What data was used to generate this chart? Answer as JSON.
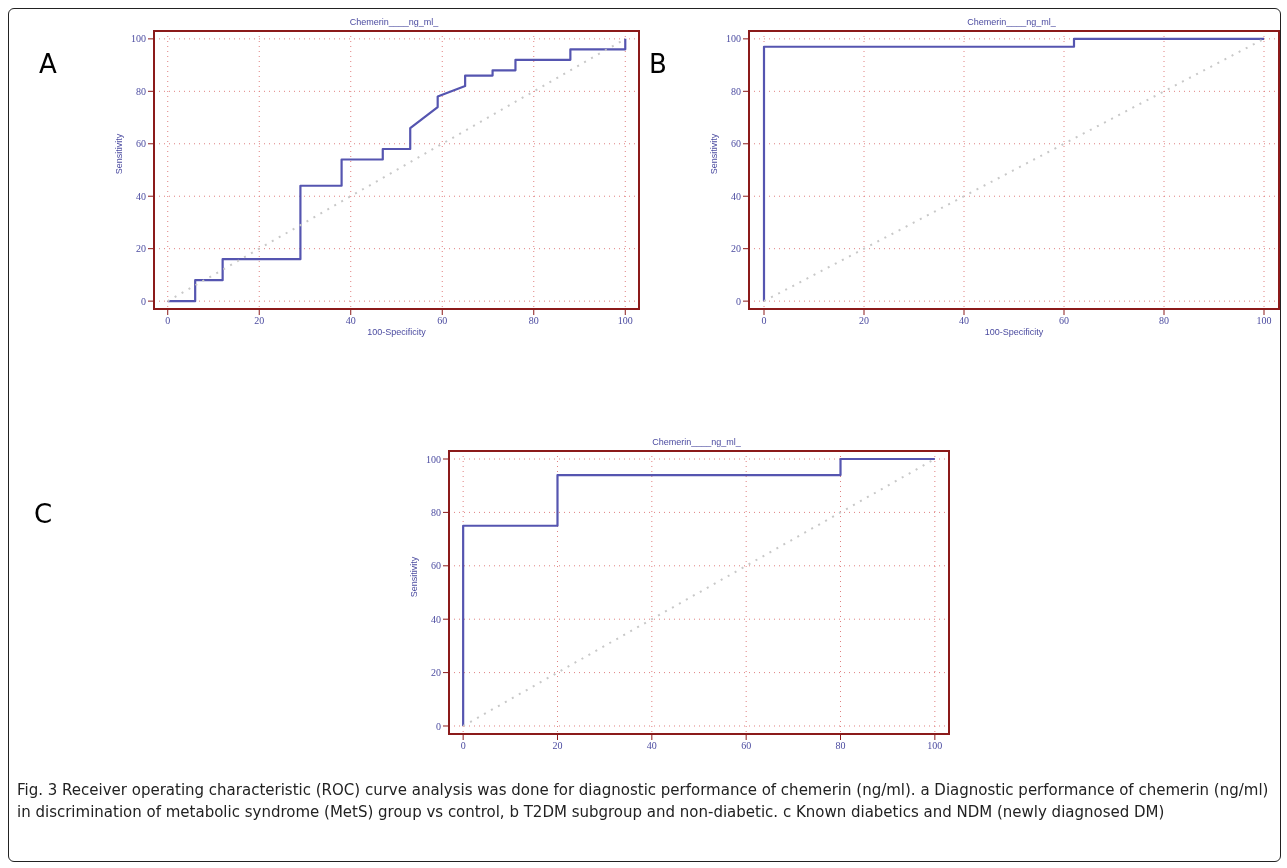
{
  "chart_data": [
    {
      "type": "line",
      "title": "Chemerin____ng_ml_",
      "xlabel": "100-Specificity",
      "ylabel": "Sensitivity",
      "annotations": [
        "A"
      ],
      "xlim": [
        -3,
        103
      ],
      "ylim": [
        -3,
        103
      ],
      "xticks": [
        0,
        20,
        40,
        60,
        80,
        100
      ],
      "yticks": [
        0,
        20,
        40,
        60,
        80,
        100
      ],
      "grid": true,
      "line_style": "solid",
      "series": [
        {
          "color": "#5555b0",
          "x": [
            0,
            6,
            6,
            12,
            12,
            29,
            29,
            38,
            38,
            47,
            47,
            53,
            53,
            59,
            59,
            65,
            65,
            71,
            71,
            76,
            76,
            88,
            88,
            100,
            100
          ],
          "values": [
            0,
            0,
            8,
            8,
            16,
            16,
            44,
            44,
            54,
            54,
            58,
            58,
            66,
            74,
            78,
            82,
            86,
            86,
            88,
            88,
            92,
            92,
            96,
            96,
            100
          ]
        },
        {
          "color": "#c8c8c8",
          "line_style": "dotted",
          "x": [
            0,
            100
          ],
          "values": [
            0,
            100
          ]
        }
      ]
    },
    {
      "type": "line",
      "title": "Chemerin____ng_ml_",
      "xlabel": "100-Specificity",
      "ylabel": "Sensitivity",
      "annotations": [
        "B"
      ],
      "xlim": [
        -3,
        103
      ],
      "ylim": [
        -3,
        103
      ],
      "xticks": [
        0,
        20,
        40,
        60,
        80,
        100
      ],
      "yticks": [
        0,
        20,
        40,
        60,
        80,
        100
      ],
      "grid": true,
      "line_style": "solid",
      "series": [
        {
          "color": "#5555b0",
          "x": [
            0,
            0,
            62,
            62,
            100
          ],
          "values": [
            0,
            97,
            97,
            100,
            100
          ]
        },
        {
          "color": "#c8c8c8",
          "line_style": "dotted",
          "x": [
            0,
            100
          ],
          "values": [
            0,
            100
          ]
        }
      ]
    },
    {
      "type": "line",
      "title": "Chemerin____ng_ml_",
      "ylabel": "Sensitivity",
      "annotations": [
        "C",
        "Fig. 3 Receiver operating characteristic (ROC) curve analysis was done for diagnostic performance of chemerin (ng/ml). a Diagnostic performance of chemerin (ng/ml) in discrimination of metabolic syndrome (MetS) group vs control, b T2DM subgroup and non-diabetic. c Known diabetics and NDM (newly diagnosed DM)"
      ],
      "xlim": [
        -3,
        103
      ],
      "ylim": [
        -3,
        103
      ],
      "xticks": [
        0,
        20,
        40,
        60,
        80,
        100
      ],
      "yticks": [
        0,
        20,
        40,
        60,
        80,
        100
      ],
      "grid": true,
      "line_style": "solid",
      "series": [
        {
          "color": "#5555b0",
          "x": [
            0,
            0,
            20,
            20,
            80,
            80,
            100
          ],
          "values": [
            0,
            75,
            75,
            94,
            94,
            100,
            100
          ]
        },
        {
          "color": "#c8c8c8",
          "line_style": "dotted",
          "x": [
            0,
            100
          ],
          "values": [
            0,
            100
          ]
        }
      ]
    }
  ]
}
